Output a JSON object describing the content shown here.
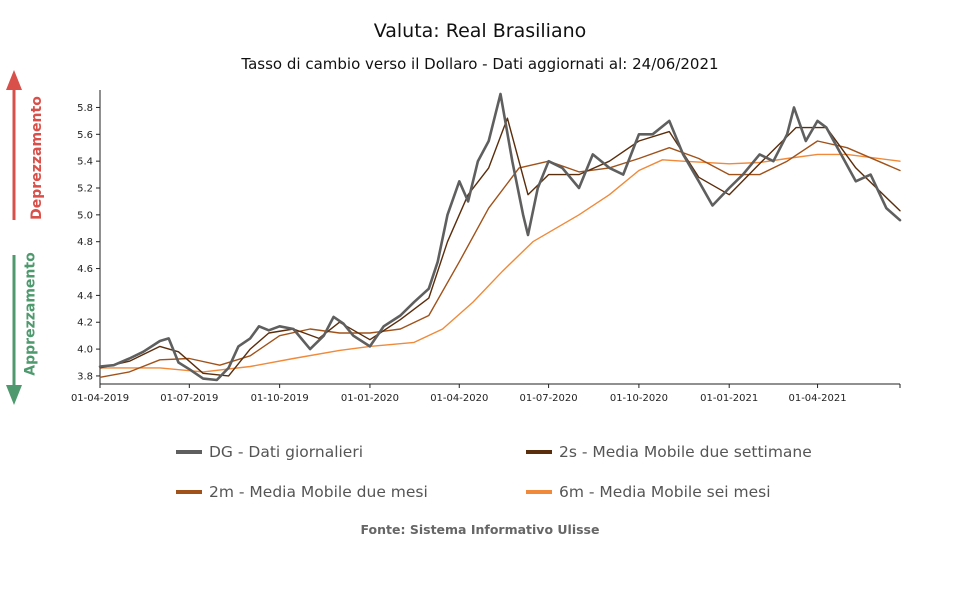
{
  "header": {
    "title": "Valuta: Real Brasiliano",
    "subtitle": "Tasso di cambio verso il Dollaro - Dati aggiornati al: 24/06/2021"
  },
  "side": {
    "up_label": "Deprezzamento",
    "down_label": "Apprezzamento",
    "up_color": "#d9504a",
    "down_color": "#4e9a6e"
  },
  "footer": {
    "source": "Fonte: Sistema Informativo Ulisse"
  },
  "chart_data": {
    "type": "line",
    "title": "Valuta: Real Brasiliano",
    "subtitle": "Tasso di cambio verso il Dollaro - Dati aggiornati al: 24/06/2021",
    "xlabel": "",
    "ylabel": "",
    "ylim": [
      3.74,
      5.93
    ],
    "xlim": [
      "2019-04-01",
      "2021-06-24"
    ],
    "y_ticks": [
      3.8,
      4.0,
      4.2,
      4.4,
      4.6,
      4.8,
      5.0,
      5.2,
      5.4,
      5.6,
      5.8
    ],
    "x_ticks": [
      {
        "date": "2019-04-01",
        "label": "01-04-2019"
      },
      {
        "date": "2019-07-01",
        "label": "01-07-2019"
      },
      {
        "date": "2019-10-01",
        "label": "01-10-2019"
      },
      {
        "date": "2020-01-01",
        "label": "01-01-2020"
      },
      {
        "date": "2020-04-01",
        "label": "01-04-2020"
      },
      {
        "date": "2020-07-01",
        "label": "01-07-2020"
      },
      {
        "date": "2020-10-01",
        "label": "01-10-2020"
      },
      {
        "date": "2021-01-01",
        "label": "01-01-2021"
      },
      {
        "date": "2021-04-01",
        "label": "01-04-2021"
      }
    ],
    "grid": false,
    "legend_position": "bottom",
    "series": [
      {
        "name": "DG - Dati giornalieri",
        "color": "#5f5f5f",
        "width": 2.6,
        "points": [
          [
            "2019-04-01",
            3.87
          ],
          [
            "2019-04-15",
            3.88
          ],
          [
            "2019-05-01",
            3.93
          ],
          [
            "2019-05-15",
            3.98
          ],
          [
            "2019-06-01",
            4.06
          ],
          [
            "2019-06-10",
            4.08
          ],
          [
            "2019-06-20",
            3.9
          ],
          [
            "2019-07-01",
            3.85
          ],
          [
            "2019-07-15",
            3.78
          ],
          [
            "2019-07-29",
            3.77
          ],
          [
            "2019-08-10",
            3.86
          ],
          [
            "2019-08-20",
            4.02
          ],
          [
            "2019-09-01",
            4.08
          ],
          [
            "2019-09-10",
            4.17
          ],
          [
            "2019-09-20",
            4.14
          ],
          [
            "2019-10-01",
            4.17
          ],
          [
            "2019-10-15",
            4.15
          ],
          [
            "2019-11-01",
            4.0
          ],
          [
            "2019-11-15",
            4.1
          ],
          [
            "2019-11-25",
            4.24
          ],
          [
            "2019-12-05",
            4.19
          ],
          [
            "2019-12-15",
            4.1
          ],
          [
            "2020-01-01",
            4.02
          ],
          [
            "2020-01-15",
            4.17
          ],
          [
            "2020-02-01",
            4.25
          ],
          [
            "2020-02-15",
            4.35
          ],
          [
            "2020-03-01",
            4.45
          ],
          [
            "2020-03-10",
            4.65
          ],
          [
            "2020-03-20",
            5.0
          ],
          [
            "2020-04-01",
            5.25
          ],
          [
            "2020-04-10",
            5.1
          ],
          [
            "2020-04-20",
            5.4
          ],
          [
            "2020-05-01",
            5.55
          ],
          [
            "2020-05-13",
            5.9
          ],
          [
            "2020-05-25",
            5.4
          ],
          [
            "2020-06-05",
            5.0
          ],
          [
            "2020-06-10",
            4.85
          ],
          [
            "2020-06-20",
            5.2
          ],
          [
            "2020-07-01",
            5.4
          ],
          [
            "2020-07-15",
            5.35
          ],
          [
            "2020-08-01",
            5.2
          ],
          [
            "2020-08-15",
            5.45
          ],
          [
            "2020-09-01",
            5.35
          ],
          [
            "2020-09-15",
            5.3
          ],
          [
            "2020-10-01",
            5.6
          ],
          [
            "2020-10-15",
            5.6
          ],
          [
            "2020-11-01",
            5.7
          ],
          [
            "2020-11-15",
            5.45
          ],
          [
            "2020-12-01",
            5.25
          ],
          [
            "2020-12-15",
            5.07
          ],
          [
            "2021-01-01",
            5.2
          ],
          [
            "2021-01-15",
            5.3
          ],
          [
            "2021-02-01",
            5.45
          ],
          [
            "2021-02-15",
            5.4
          ],
          [
            "2021-03-01",
            5.6
          ],
          [
            "2021-03-08",
            5.8
          ],
          [
            "2021-03-20",
            5.55
          ],
          [
            "2021-04-01",
            5.7
          ],
          [
            "2021-04-10",
            5.65
          ],
          [
            "2021-04-25",
            5.45
          ],
          [
            "2021-05-10",
            5.25
          ],
          [
            "2021-05-25",
            5.3
          ],
          [
            "2021-06-10",
            5.05
          ],
          [
            "2021-06-24",
            4.96
          ]
        ]
      },
      {
        "name": "2s - Media Mobile due settimane",
        "color": "#5a2d0c",
        "width": 1.4,
        "points": [
          [
            "2019-04-01",
            3.86
          ],
          [
            "2019-05-01",
            3.91
          ],
          [
            "2019-06-01",
            4.02
          ],
          [
            "2019-06-20",
            3.98
          ],
          [
            "2019-07-15",
            3.82
          ],
          [
            "2019-08-10",
            3.8
          ],
          [
            "2019-09-01",
            4.0
          ],
          [
            "2019-09-20",
            4.12
          ],
          [
            "2019-10-15",
            4.15
          ],
          [
            "2019-11-10",
            4.08
          ],
          [
            "2019-12-01",
            4.2
          ],
          [
            "2020-01-01",
            4.07
          ],
          [
            "2020-02-01",
            4.22
          ],
          [
            "2020-03-01",
            4.38
          ],
          [
            "2020-03-20",
            4.8
          ],
          [
            "2020-04-10",
            5.15
          ],
          [
            "2020-05-01",
            5.35
          ],
          [
            "2020-05-20",
            5.72
          ],
          [
            "2020-06-10",
            5.15
          ],
          [
            "2020-07-01",
            5.3
          ],
          [
            "2020-08-01",
            5.3
          ],
          [
            "2020-09-01",
            5.4
          ],
          [
            "2020-10-01",
            5.55
          ],
          [
            "2020-11-01",
            5.62
          ],
          [
            "2020-12-01",
            5.28
          ],
          [
            "2021-01-01",
            5.15
          ],
          [
            "2021-02-01",
            5.38
          ],
          [
            "2021-03-10",
            5.65
          ],
          [
            "2021-04-10",
            5.65
          ],
          [
            "2021-05-10",
            5.35
          ],
          [
            "2021-06-24",
            5.03
          ]
        ]
      },
      {
        "name": "2m - Media Mobile due mesi",
        "color": "#a0521a",
        "width": 1.4,
        "points": [
          [
            "2019-04-01",
            3.79
          ],
          [
            "2019-05-01",
            3.83
          ],
          [
            "2019-06-01",
            3.92
          ],
          [
            "2019-07-01",
            3.93
          ],
          [
            "2019-08-01",
            3.88
          ],
          [
            "2019-09-01",
            3.95
          ],
          [
            "2019-10-01",
            4.1
          ],
          [
            "2019-11-01",
            4.15
          ],
          [
            "2019-12-01",
            4.12
          ],
          [
            "2020-01-01",
            4.12
          ],
          [
            "2020-02-01",
            4.15
          ],
          [
            "2020-03-01",
            4.25
          ],
          [
            "2020-04-01",
            4.65
          ],
          [
            "2020-05-01",
            5.05
          ],
          [
            "2020-06-01",
            5.35
          ],
          [
            "2020-07-01",
            5.4
          ],
          [
            "2020-08-01",
            5.32
          ],
          [
            "2020-09-01",
            5.35
          ],
          [
            "2020-10-01",
            5.42
          ],
          [
            "2020-11-01",
            5.5
          ],
          [
            "2020-12-01",
            5.42
          ],
          [
            "2021-01-01",
            5.3
          ],
          [
            "2021-02-01",
            5.3
          ],
          [
            "2021-03-01",
            5.4
          ],
          [
            "2021-04-01",
            5.55
          ],
          [
            "2021-05-01",
            5.5
          ],
          [
            "2021-06-24",
            5.33
          ]
        ]
      },
      {
        "name": "6m - Media Mobile sei mesi",
        "color": "#f08a3a",
        "width": 1.4,
        "points": [
          [
            "2019-04-01",
            3.86
          ],
          [
            "2019-06-01",
            3.86
          ],
          [
            "2019-07-15",
            3.83
          ],
          [
            "2019-09-01",
            3.87
          ],
          [
            "2019-10-15",
            3.93
          ],
          [
            "2019-12-01",
            3.99
          ],
          [
            "2020-01-01",
            4.02
          ],
          [
            "2020-02-15",
            4.05
          ],
          [
            "2020-03-15",
            4.15
          ],
          [
            "2020-04-15",
            4.35
          ],
          [
            "2020-05-15",
            4.58
          ],
          [
            "2020-06-15",
            4.8
          ],
          [
            "2020-08-01",
            5.0
          ],
          [
            "2020-09-01",
            5.15
          ],
          [
            "2020-10-01",
            5.33
          ],
          [
            "2020-10-25",
            5.41
          ],
          [
            "2020-11-15",
            5.4
          ],
          [
            "2021-01-01",
            5.38
          ],
          [
            "2021-02-01",
            5.39
          ],
          [
            "2021-03-01",
            5.42
          ],
          [
            "2021-04-01",
            5.45
          ],
          [
            "2021-05-01",
            5.45
          ],
          [
            "2021-06-24",
            5.4
          ]
        ]
      }
    ]
  }
}
